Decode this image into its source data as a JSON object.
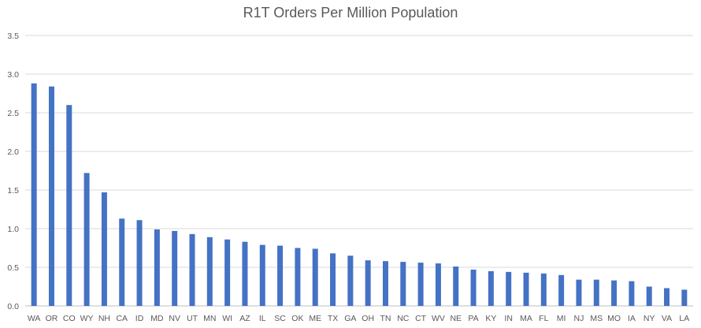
{
  "chart_data": {
    "type": "bar",
    "title": "R1T Orders Per Million Population",
    "xlabel": "",
    "ylabel": "",
    "ylim": [
      0,
      3.5
    ],
    "yticks": [
      "0.0",
      "0.5",
      "1.0",
      "1.5",
      "2.0",
      "2.5",
      "3.0",
      "3.5"
    ],
    "grid": true,
    "legend": "none",
    "bar_color": "#4472C4",
    "grid_color": "#D9D9D9",
    "categories": [
      "WA",
      "OR",
      "CO",
      "WY",
      "NH",
      "CA",
      "ID",
      "MD",
      "NV",
      "UT",
      "MN",
      "WI",
      "AZ",
      "IL",
      "SC",
      "OK",
      "ME",
      "TX",
      "GA",
      "OH",
      "TN",
      "NC",
      "CT",
      "WV",
      "NE",
      "PA",
      "KY",
      "IN",
      "MA",
      "FL",
      "MI",
      "NJ",
      "MS",
      "MO",
      "IA",
      "NY",
      "VA",
      "LA"
    ],
    "values": [
      2.88,
      2.84,
      2.6,
      1.72,
      1.47,
      1.13,
      1.11,
      0.99,
      0.97,
      0.93,
      0.89,
      0.86,
      0.83,
      0.79,
      0.78,
      0.75,
      0.74,
      0.68,
      0.65,
      0.59,
      0.58,
      0.57,
      0.56,
      0.55,
      0.51,
      0.47,
      0.45,
      0.44,
      0.43,
      0.42,
      0.4,
      0.34,
      0.34,
      0.33,
      0.32,
      0.25,
      0.23,
      0.21
    ]
  }
}
